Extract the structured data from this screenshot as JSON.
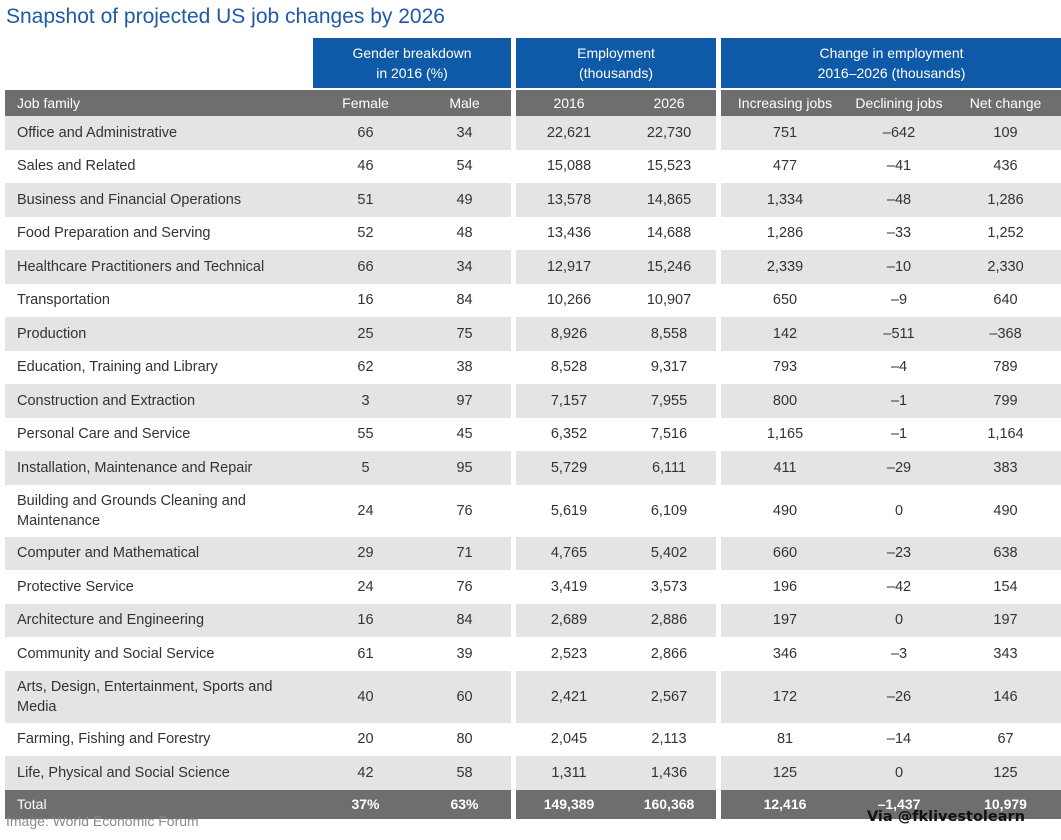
{
  "title": "Snapshot of projected US job changes by 2026",
  "group_headers": {
    "gender": [
      "Gender breakdown",
      "in 2016 (%)"
    ],
    "employment": [
      "Employment",
      "(thousands)"
    ],
    "change": [
      "Change in employment",
      "2016–2026 (thousands)"
    ]
  },
  "column_headers": [
    "Job family",
    "Female",
    "Male",
    "2016",
    "2026",
    "Increasing jobs",
    "Declining jobs",
    "Net change"
  ],
  "rows": [
    {
      "family": "Office and Administrative",
      "female": "66",
      "male": "34",
      "e2016": "22,621",
      "e2026": "22,730",
      "increasing": "751",
      "declining": "–642",
      "net": "109"
    },
    {
      "family": "Sales and Related",
      "female": "46",
      "male": "54",
      "e2016": "15,088",
      "e2026": "15,523",
      "increasing": "477",
      "declining": "–41",
      "net": "436"
    },
    {
      "family": "Business and Financial Operations",
      "female": "51",
      "male": "49",
      "e2016": "13,578",
      "e2026": "14,865",
      "increasing": "1,334",
      "declining": "–48",
      "net": "1,286"
    },
    {
      "family": "Food Preparation and Serving",
      "female": "52",
      "male": "48",
      "e2016": "13,436",
      "e2026": "14,688",
      "increasing": "1,286",
      "declining": "–33",
      "net": "1,252"
    },
    {
      "family": "Healthcare Practitioners and Technical",
      "female": "66",
      "male": "34",
      "e2016": "12,917",
      "e2026": "15,246",
      "increasing": "2,339",
      "declining": "–10",
      "net": "2,330"
    },
    {
      "family": "Transportation",
      "female": "16",
      "male": "84",
      "e2016": "10,266",
      "e2026": "10,907",
      "increasing": "650",
      "declining": "–9",
      "net": "640"
    },
    {
      "family": "Production",
      "female": "25",
      "male": "75",
      "e2016": "8,926",
      "e2026": "8,558",
      "increasing": "142",
      "declining": "–511",
      "net": "–368"
    },
    {
      "family": "Education, Training and Library",
      "female": "62",
      "male": "38",
      "e2016": "8,528",
      "e2026": "9,317",
      "increasing": "793",
      "declining": "–4",
      "net": "789"
    },
    {
      "family": "Construction and Extraction",
      "female": "3",
      "male": "97",
      "e2016": "7,157",
      "e2026": "7,955",
      "increasing": "800",
      "declining": "–1",
      "net": "799"
    },
    {
      "family": "Personal Care and Service",
      "female": "55",
      "male": "45",
      "e2016": "6,352",
      "e2026": "7,516",
      "increasing": "1,165",
      "declining": "–1",
      "net": "1,164"
    },
    {
      "family": "Installation, Maintenance and Repair",
      "female": "5",
      "male": "95",
      "e2016": "5,729",
      "e2026": "6,111",
      "increasing": "411",
      "declining": "–29",
      "net": "383"
    },
    {
      "family": "Building and Grounds Cleaning and Maintenance",
      "female": "24",
      "male": "76",
      "e2016": "5,619",
      "e2026": "6,109",
      "increasing": "490",
      "declining": "0",
      "net": "490"
    },
    {
      "family": "Computer and Mathematical",
      "female": "29",
      "male": "71",
      "e2016": "4,765",
      "e2026": "5,402",
      "increasing": "660",
      "declining": "–23",
      "net": "638"
    },
    {
      "family": "Protective Service",
      "female": "24",
      "male": "76",
      "e2016": "3,419",
      "e2026": "3,573",
      "increasing": "196",
      "declining": "–42",
      "net": "154"
    },
    {
      "family": "Architecture and Engineering",
      "female": "16",
      "male": "84",
      "e2016": "2,689",
      "e2026": "2,886",
      "increasing": "197",
      "declining": "0",
      "net": "197"
    },
    {
      "family": "Community and Social Service",
      "female": "61",
      "male": "39",
      "e2016": "2,523",
      "e2026": "2,866",
      "increasing": "346",
      "declining": "–3",
      "net": "343"
    },
    {
      "family": "Arts, Design, Entertainment, Sports and Media",
      "female": "40",
      "male": "60",
      "e2016": "2,421",
      "e2026": "2,567",
      "increasing": "172",
      "declining": "–26",
      "net": "146"
    },
    {
      "family": "Farming, Fishing and Forestry",
      "female": "20",
      "male": "80",
      "e2016": "2,045",
      "e2026": "2,113",
      "increasing": "81",
      "declining": "–14",
      "net": "67"
    },
    {
      "family": "Life, Physical and Social Science",
      "female": "42",
      "male": "58",
      "e2016": "1,311",
      "e2026": "1,436",
      "increasing": "125",
      "declining": "0",
      "net": "125"
    }
  ],
  "total": {
    "family": "Total",
    "female": "37%",
    "male": "63%",
    "e2016": "149,389",
    "e2026": "160,368",
    "increasing": "12,416",
    "declining": "–1,437",
    "net": "10,979"
  },
  "source": "Image: World Economic Forum",
  "via": "Via @fklivestolearn",
  "colors": {
    "title": "#1e5aa6",
    "group_header_bg": "#0f5aa8",
    "column_header_bg": "#6e6e6e",
    "stripe": "#e4e4e4"
  }
}
